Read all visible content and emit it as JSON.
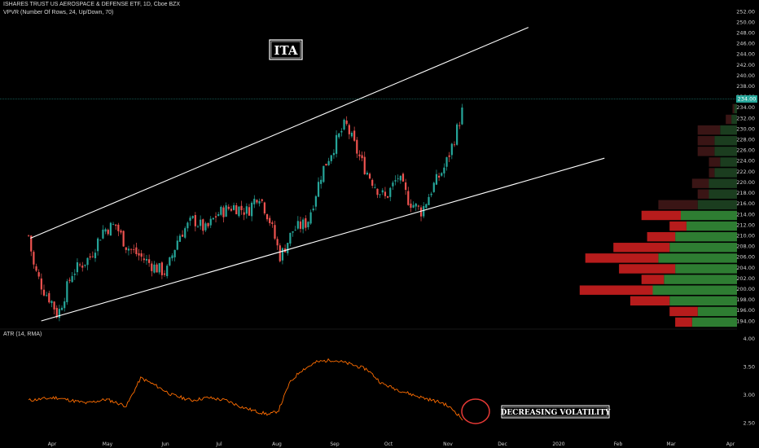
{
  "header": {
    "symbol_line": "ISHARES TRUST US AEROSPACE & DEFENSE ETF, 1D, Cboe BZX",
    "vpvr_line": "VPVR (Number Of Rows, 24, Up/Down, 70)",
    "atr_line": "ATR (14, RMA)"
  },
  "annotations": {
    "ticker_box": "ITA",
    "volatility_box": "DECREASING VOLATILITY"
  },
  "colors": {
    "up": "#26a69a",
    "down": "#ef5350",
    "trendline": "#ffffff",
    "atr": "#ff6d00",
    "vol_up": "#2e7d32",
    "vol_down": "#b71c1c",
    "circle": "#e53935",
    "last_price_bg": "#26a69a"
  },
  "price_axis": {
    "min": 193,
    "max": 252,
    "ticks": [
      "252.00",
      "250.00",
      "248.00",
      "246.00",
      "244.00",
      "242.00",
      "240.00",
      "238.00",
      "236.00",
      "234.00",
      "232.00",
      "230.00",
      "228.00",
      "226.00",
      "224.00",
      "222.00",
      "220.00",
      "218.00",
      "216.00",
      "214.00",
      "212.00",
      "210.00",
      "208.00",
      "206.00",
      "204.00",
      "202.00",
      "200.00",
      "198.00",
      "196.00",
      "194.00"
    ],
    "last_price": "234.00"
  },
  "atr_axis": {
    "ticks": [
      "4.00",
      "3.50",
      "3.00",
      "2.50"
    ]
  },
  "time_axis": {
    "labels": [
      "Apr",
      "May",
      "Jun",
      "Jul",
      "Aug",
      "Sep",
      "Oct",
      "Nov",
      "Dec",
      "2020",
      "Feb",
      "Mar",
      "Apr"
    ]
  },
  "chart_data": [
    {
      "type": "candlestick",
      "title": "ISHARES TRUST US AEROSPACE & DEFENSE ETF, 1D, Cboe BZX",
      "ylim": [
        193,
        252
      ],
      "x_labels": [
        "Apr",
        "May",
        "Jun",
        "Jul",
        "Aug",
        "Sep",
        "Oct",
        "Nov",
        "Dec",
        "2020",
        "Feb",
        "Mar",
        "Apr"
      ],
      "close_path": [
        {
          "date": "Mar 19",
          "close": 210
        },
        {
          "date": "Mar 22",
          "close": 204
        },
        {
          "date": "Mar 27",
          "close": 200
        },
        {
          "date": "Apr 1",
          "close": 197.5
        },
        {
          "date": "Apr 4",
          "close": 195
        },
        {
          "date": "Apr 12",
          "close": 203
        },
        {
          "date": "Apr 22",
          "close": 206
        },
        {
          "date": "Apr 29",
          "close": 211
        },
        {
          "date": "May 6",
          "close": 212
        },
        {
          "date": "May 12",
          "close": 208
        },
        {
          "date": "May 18",
          "close": 206.5
        },
        {
          "date": "May 28",
          "close": 204
        },
        {
          "date": "Jun 3",
          "close": 203
        },
        {
          "date": "Jun 10",
          "close": 210
        },
        {
          "date": "Jun 18",
          "close": 213
        },
        {
          "date": "Jun 25",
          "close": 211
        },
        {
          "date": "Jul 1",
          "close": 214
        },
        {
          "date": "Jul 10",
          "close": 215.5
        },
        {
          "date": "Jul 18",
          "close": 214.5
        },
        {
          "date": "Jul 24",
          "close": 218
        },
        {
          "date": "Jul 30",
          "close": 213
        },
        {
          "date": "Aug 5",
          "close": 206
        },
        {
          "date": "Aug 12",
          "close": 211
        },
        {
          "date": "Aug 20",
          "close": 212.5
        },
        {
          "date": "Aug 28",
          "close": 222
        },
        {
          "date": "Sep 4",
          "close": 227
        },
        {
          "date": "Sep 10",
          "close": 231
        },
        {
          "date": "Sep 16",
          "close": 226
        },
        {
          "date": "Sep 20",
          "close": 223
        },
        {
          "date": "Sep 27",
          "close": 219
        },
        {
          "date": "Oct 2",
          "close": 217
        },
        {
          "date": "Oct 9",
          "close": 221
        },
        {
          "date": "Oct 15",
          "close": 216.5
        },
        {
          "date": "Oct 22",
          "close": 214.5
        },
        {
          "date": "Oct 28",
          "close": 219
        },
        {
          "date": "Nov 4",
          "close": 223
        },
        {
          "date": "Nov 9",
          "close": 228
        },
        {
          "date": "Nov 14",
          "close": 234
        }
      ],
      "channel": {
        "upper": [
          {
            "date": "Mar 20",
            "price": 209.5
          },
          {
            "date": "Dec 20",
            "price": 249
          }
        ],
        "lower": [
          {
            "date": "Mar 26",
            "price": 194
          },
          {
            "date": "Jan 31",
            "price": 224.5
          }
        ]
      },
      "last_price": 234
    },
    {
      "type": "bar",
      "title": "VPVR (Number Of Rows, 24, Up/Down, 70)",
      "categories": [
        "194.00",
        "196.00",
        "198.00",
        "200.00",
        "202.00",
        "204.00",
        "206.00",
        "208.00",
        "210.00",
        "212.00",
        "214.00",
        "216.00",
        "218.00",
        "220.00",
        "222.00",
        "224.00",
        "226.00",
        "228.00",
        "230.00",
        "232.00",
        "234.00"
      ],
      "series": [
        {
          "name": "Up",
          "values": [
            8,
            7,
            12,
            15,
            13,
            11,
            14,
            12,
            11,
            9,
            10,
            7,
            5,
            5,
            4,
            3,
            4,
            4,
            3,
            1,
            0.5
          ]
        },
        {
          "name": "Down",
          "values": [
            3,
            5,
            7,
            13,
            4,
            10,
            13,
            10,
            5,
            3,
            7,
            7,
            2,
            3,
            1,
            2,
            3,
            3,
            4,
            1,
            0.3
          ]
        }
      ]
    },
    {
      "type": "line",
      "title": "ATR (14, RMA)",
      "ylim": [
        2.2,
        4.05
      ],
      "points": [
        {
          "date": "Mar 19",
          "y": 2.9
        },
        {
          "date": "Apr 3",
          "y": 2.95
        },
        {
          "date": "Apr 20",
          "y": 2.85
        },
        {
          "date": "May 1",
          "y": 2.92
        },
        {
          "date": "May 12",
          "y": 2.8
        },
        {
          "date": "May 20",
          "y": 3.3
        },
        {
          "date": "May 29",
          "y": 3.15
        },
        {
          "date": "Jun 6",
          "y": 3.0
        },
        {
          "date": "Jun 17",
          "y": 2.9
        },
        {
          "date": "Jun 26",
          "y": 2.95
        },
        {
          "date": "Jul 6",
          "y": 2.9
        },
        {
          "date": "Jul 15",
          "y": 2.78
        },
        {
          "date": "Jul 23",
          "y": 2.7
        },
        {
          "date": "Jul 30",
          "y": 2.65
        },
        {
          "date": "Aug 4",
          "y": 2.72
        },
        {
          "date": "Aug 10",
          "y": 3.2
        },
        {
          "date": "Aug 16",
          "y": 3.42
        },
        {
          "date": "Aug 25",
          "y": 3.58
        },
        {
          "date": "Sep 3",
          "y": 3.62
        },
        {
          "date": "Sep 12",
          "y": 3.55
        },
        {
          "date": "Sep 22",
          "y": 3.45
        },
        {
          "date": "Sep 30",
          "y": 3.2
        },
        {
          "date": "Oct 8",
          "y": 3.1
        },
        {
          "date": "Oct 17",
          "y": 3.0
        },
        {
          "date": "Oct 28",
          "y": 2.9
        },
        {
          "date": "Nov 3",
          "y": 2.85
        },
        {
          "date": "Nov 9",
          "y": 2.72
        },
        {
          "date": "Nov 14",
          "y": 2.55
        }
      ]
    }
  ]
}
